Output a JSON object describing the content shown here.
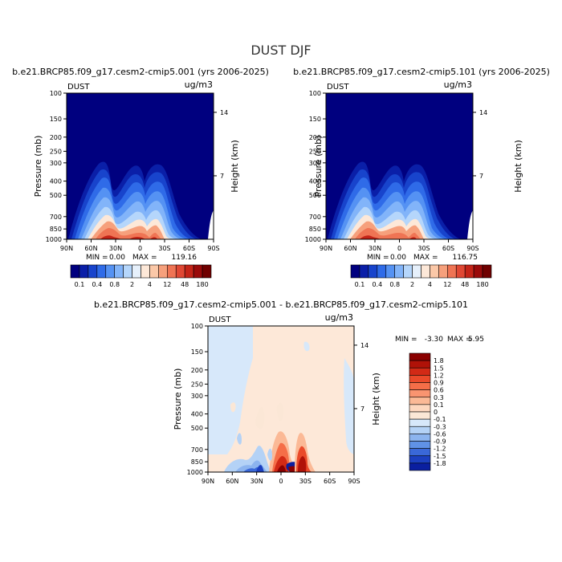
{
  "figure": {
    "title": "DUST DJF",
    "shared_levels_labels": [
      "0.1",
      "0.4",
      "0.8",
      "2",
      "4",
      "12",
      "48",
      "180"
    ],
    "levels_colors": [
      "#00007f",
      "#0a1fa8",
      "#1844cc",
      "#2f6be8",
      "#5592f3",
      "#82b4f9",
      "#b5d6fb",
      "#e6f0fb",
      "#fde8d8",
      "#fbc8a8",
      "#f6a07c",
      "#ef7454",
      "#e04834",
      "#c42418",
      "#9a0a0a",
      "#700000"
    ]
  },
  "chart_data": [
    {
      "type": "heatmap",
      "title": "b.e21.BRCP85.f09_g17.cesm2-cmip5.001 (yrs 2006-2025)",
      "corner_left": "DUST",
      "corner_right": "ug/m3",
      "ylabel": "Pressure (mb)",
      "ylabel_right": "Height (km)",
      "x_ticks": [
        "90N",
        "60N",
        "30N",
        "0",
        "30S",
        "60S",
        "90S"
      ],
      "y_ticks": [
        "100",
        "150",
        "200",
        "250",
        "300",
        "400",
        "500",
        "700",
        "850",
        "1000"
      ],
      "y_ticks_right": [
        "14",
        "7"
      ],
      "min_label": "MIN =",
      "min_value": "0.00",
      "max_label": "MAX =",
      "max_value": "119.16",
      "colorbar_labels": [
        "0.1",
        "0.4",
        "0.8",
        "2",
        "4",
        "12",
        "48",
        "180"
      ]
    },
    {
      "type": "heatmap",
      "title": "b.e21.BRCP85.f09_g17.cesm2-cmip5.101 (yrs 2006-2025)",
      "corner_left": "DUST",
      "corner_right": "ug/m3",
      "ylabel": "Pressure (mb)",
      "ylabel_right": "Height (km)",
      "x_ticks": [
        "90N",
        "60N",
        "30N",
        "0",
        "30S",
        "60S",
        "90S"
      ],
      "y_ticks": [
        "100",
        "150",
        "200",
        "250",
        "300",
        "400",
        "500",
        "700",
        "850",
        "1000"
      ],
      "y_ticks_right": [
        "14",
        "7"
      ],
      "min_label": "MIN =",
      "min_value": "0.00",
      "max_label": "MAX =",
      "max_value": "116.75",
      "colorbar_labels": [
        "0.1",
        "0.4",
        "0.8",
        "2",
        "4",
        "12",
        "48",
        "180"
      ]
    },
    {
      "type": "heatmap",
      "title": "b.e21.BRCP85.f09_g17.cesm2-cmip5.001 - b.e21.BRCP85.f09_g17.cesm2-cmip5.101",
      "corner_left": "DUST",
      "corner_right": "ug/m3",
      "ylabel": "Pressure (mb)",
      "ylabel_right": "Height (km)",
      "x_ticks": [
        "90N",
        "60N",
        "30N",
        "0",
        "30S",
        "60S",
        "90S"
      ],
      "y_ticks": [
        "100",
        "150",
        "200",
        "250",
        "300",
        "400",
        "500",
        "700",
        "850",
        "1000"
      ],
      "y_ticks_right": [
        "14",
        "7"
      ],
      "min_label": "MIN =",
      "min_value": "-3.30",
      "max_label": "MAX =",
      "max_value": "5.95",
      "colorbar_labels": [
        "1.8",
        "1.5",
        "1.2",
        "0.9",
        "0.6",
        "0.3",
        "0.1",
        "0",
        "-0.1",
        "-0.3",
        "-0.6",
        "-0.9",
        "-1.2",
        "-1.5",
        "-1.8"
      ],
      "colorbar_colors": [
        "#8a0000",
        "#b01208",
        "#d22a16",
        "#ea4a2a",
        "#f56e48",
        "#f99470",
        "#fbb996",
        "#fdd7be",
        "#fbe7d6",
        "#d7e8fa",
        "#b4d2f6",
        "#8cb4ef",
        "#6092e6",
        "#3a68d8",
        "#1c40c0",
        "#0a1fa0"
      ]
    }
  ]
}
